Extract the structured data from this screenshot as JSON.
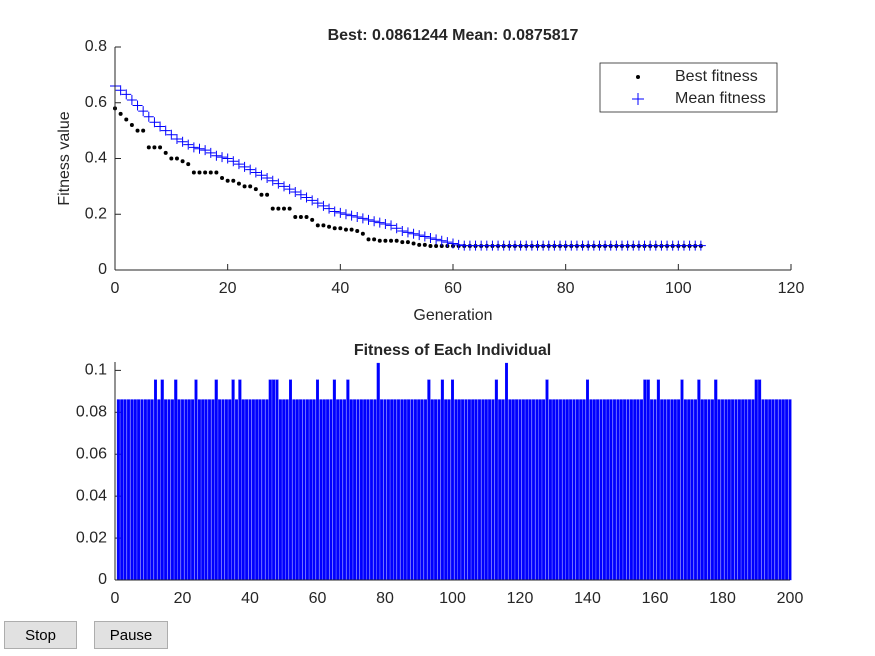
{
  "chart_data": [
    {
      "type": "scatter",
      "title": "Best: 0.0861244 Mean: 0.0875817",
      "xlabel": "Generation",
      "ylabel": "Fitness value",
      "x": [
        0,
        1,
        2,
        3,
        4,
        5,
        6,
        7,
        8,
        9,
        10,
        11,
        12,
        13,
        14,
        15,
        16,
        17,
        18,
        19,
        20,
        21,
        22,
        23,
        24,
        25,
        26,
        27,
        28,
        29,
        30,
        31,
        32,
        33,
        34,
        35,
        36,
        37,
        38,
        39,
        40,
        41,
        42,
        43,
        44,
        45,
        46,
        47,
        48,
        49,
        50,
        51,
        52,
        53,
        54,
        55,
        56,
        57,
        58,
        59,
        60,
        61,
        62,
        63,
        64,
        65,
        66,
        67,
        68,
        69,
        70,
        71,
        72,
        73,
        74,
        75,
        76,
        77,
        78,
        79,
        80,
        81,
        82,
        83,
        84,
        85,
        86,
        87,
        88,
        89,
        90,
        91,
        92,
        93,
        94,
        95,
        96,
        97,
        98,
        99,
        100,
        101,
        102,
        103,
        104
      ],
      "series": [
        {
          "name": "Best fitness",
          "color": "#000000",
          "marker": "dot",
          "values": [
            0.58,
            0.56,
            0.54,
            0.52,
            0.5,
            0.5,
            0.44,
            0.44,
            0.44,
            0.42,
            0.4,
            0.4,
            0.39,
            0.38,
            0.35,
            0.35,
            0.35,
            0.35,
            0.35,
            0.33,
            0.32,
            0.32,
            0.31,
            0.3,
            0.3,
            0.29,
            0.27,
            0.27,
            0.22,
            0.22,
            0.22,
            0.22,
            0.19,
            0.19,
            0.19,
            0.18,
            0.16,
            0.16,
            0.155,
            0.15,
            0.15,
            0.145,
            0.145,
            0.14,
            0.13,
            0.11,
            0.11,
            0.105,
            0.105,
            0.105,
            0.105,
            0.1,
            0.1,
            0.095,
            0.09,
            0.09,
            0.086,
            0.086,
            0.086,
            0.086,
            0.086,
            0.086,
            0.086,
            0.086,
            0.086,
            0.086,
            0.086,
            0.086,
            0.086,
            0.086,
            0.086,
            0.086,
            0.086,
            0.086,
            0.086,
            0.086,
            0.086,
            0.086,
            0.086,
            0.086,
            0.086,
            0.086,
            0.086,
            0.086,
            0.086,
            0.086,
            0.086,
            0.086,
            0.086,
            0.086,
            0.086,
            0.086,
            0.086,
            0.086,
            0.086,
            0.086,
            0.086,
            0.086,
            0.086,
            0.086,
            0.086,
            0.086,
            0.086,
            0.086,
            0.086
          ]
        },
        {
          "name": "Mean fitness",
          "color": "#0000ff",
          "marker": "plus",
          "values": [
            0.66,
            0.645,
            0.63,
            0.61,
            0.59,
            0.57,
            0.55,
            0.53,
            0.515,
            0.5,
            0.485,
            0.47,
            0.46,
            0.45,
            0.44,
            0.435,
            0.43,
            0.42,
            0.41,
            0.405,
            0.4,
            0.39,
            0.38,
            0.37,
            0.36,
            0.35,
            0.34,
            0.33,
            0.32,
            0.31,
            0.3,
            0.29,
            0.28,
            0.27,
            0.26,
            0.25,
            0.24,
            0.23,
            0.22,
            0.21,
            0.205,
            0.2,
            0.195,
            0.19,
            0.185,
            0.18,
            0.175,
            0.17,
            0.165,
            0.16,
            0.15,
            0.14,
            0.135,
            0.13,
            0.125,
            0.12,
            0.115,
            0.11,
            0.105,
            0.1,
            0.095,
            0.09,
            0.0876,
            0.0876,
            0.0876,
            0.0876,
            0.0876,
            0.0876,
            0.0876,
            0.0876,
            0.0876,
            0.0876,
            0.0876,
            0.0876,
            0.0876,
            0.0876,
            0.0876,
            0.0876,
            0.0876,
            0.0876,
            0.0876,
            0.0876,
            0.0876,
            0.0876,
            0.0876,
            0.0876,
            0.0876,
            0.0876,
            0.0876,
            0.0876,
            0.0876,
            0.0876,
            0.0876,
            0.0876,
            0.0876,
            0.0876,
            0.0876,
            0.0876,
            0.0876,
            0.0876,
            0.0876,
            0.0876,
            0.0876,
            0.0876,
            0.0876
          ]
        }
      ],
      "xlim": [
        0,
        120
      ],
      "xticks": [
        0,
        20,
        40,
        60,
        80,
        100,
        120
      ],
      "ylim": [
        0,
        0.8
      ],
      "yticks": [
        0,
        0.2,
        0.4,
        0.6,
        0.8
      ],
      "legend": "top-right"
    },
    {
      "type": "bar",
      "title": "Fitness of Each Individual",
      "color": "#0000ff",
      "x": [
        1,
        2,
        3,
        4,
        5,
        6,
        7,
        8,
        9,
        10,
        11,
        12,
        13,
        14,
        15,
        16,
        17,
        18,
        19,
        20,
        21,
        22,
        23,
        24,
        25,
        26,
        27,
        28,
        29,
        30,
        31,
        32,
        33,
        34,
        35,
        36,
        37,
        38,
        39,
        40,
        41,
        42,
        43,
        44,
        45,
        46,
        47,
        48,
        49,
        50,
        51,
        52,
        53,
        54,
        55,
        56,
        57,
        58,
        59,
        60,
        61,
        62,
        63,
        64,
        65,
        66,
        67,
        68,
        69,
        70,
        71,
        72,
        73,
        74,
        75,
        76,
        77,
        78,
        79,
        80,
        81,
        82,
        83,
        84,
        85,
        86,
        87,
        88,
        89,
        90,
        91,
        92,
        93,
        94,
        95,
        96,
        97,
        98,
        99,
        100,
        101,
        102,
        103,
        104,
        105,
        106,
        107,
        108,
        109,
        110,
        111,
        112,
        113,
        114,
        115,
        116,
        117,
        118,
        119,
        120,
        121,
        122,
        123,
        124,
        125,
        126,
        127,
        128,
        129,
        130,
        131,
        132,
        133,
        134,
        135,
        136,
        137,
        138,
        139,
        140,
        141,
        142,
        143,
        144,
        145,
        146,
        147,
        148,
        149,
        150,
        151,
        152,
        153,
        154,
        155,
        156,
        157,
        158,
        159,
        160,
        161,
        162,
        163,
        164,
        165,
        166,
        167,
        168,
        169,
        170,
        171,
        172,
        173,
        174,
        175,
        176,
        177,
        178,
        179,
        180,
        181,
        182,
        183,
        184,
        185,
        186,
        187,
        188,
        189,
        190,
        191,
        192,
        193,
        194,
        195,
        196,
        197,
        198,
        199,
        200
      ],
      "values": [
        0.0861,
        0.0861,
        0.0861,
        0.0861,
        0.0861,
        0.0861,
        0.0861,
        0.0861,
        0.0861,
        0.0861,
        0.0861,
        0.0955,
        0.0861,
        0.0955,
        0.0861,
        0.0861,
        0.0861,
        0.0955,
        0.0861,
        0.0861,
        0.0861,
        0.0861,
        0.0861,
        0.0955,
        0.0861,
        0.0861,
        0.0861,
        0.0861,
        0.0861,
        0.0955,
        0.0861,
        0.0861,
        0.0861,
        0.0861,
        0.0955,
        0.0861,
        0.0955,
        0.0861,
        0.0861,
        0.0861,
        0.0861,
        0.0861,
        0.0861,
        0.0861,
        0.0861,
        0.0955,
        0.0955,
        0.0955,
        0.0861,
        0.0861,
        0.0861,
        0.0955,
        0.0861,
        0.0861,
        0.0861,
        0.0861,
        0.0861,
        0.0861,
        0.0861,
        0.0955,
        0.0861,
        0.0861,
        0.0861,
        0.0861,
        0.0955,
        0.0861,
        0.0861,
        0.0861,
        0.0955,
        0.0861,
        0.0861,
        0.0861,
        0.0861,
        0.0861,
        0.0861,
        0.0861,
        0.0861,
        0.1035,
        0.0861,
        0.0861,
        0.0861,
        0.0861,
        0.0861,
        0.0861,
        0.0861,
        0.0861,
        0.0861,
        0.0861,
        0.0861,
        0.0861,
        0.0861,
        0.0861,
        0.0955,
        0.0861,
        0.0861,
        0.0861,
        0.0955,
        0.0861,
        0.0861,
        0.0955,
        0.0861,
        0.0861,
        0.0861,
        0.0861,
        0.0861,
        0.0861,
        0.0861,
        0.0861,
        0.0861,
        0.0861,
        0.0861,
        0.0861,
        0.0955,
        0.0861,
        0.0861,
        0.1035,
        0.0861,
        0.0861,
        0.0861,
        0.0861,
        0.0861,
        0.0861,
        0.0861,
        0.0861,
        0.0861,
        0.0861,
        0.0861,
        0.0955,
        0.0861,
        0.0861,
        0.0861,
        0.0861,
        0.0861,
        0.0861,
        0.0861,
        0.0861,
        0.0861,
        0.0861,
        0.0861,
        0.0955,
        0.0861,
        0.0861,
        0.0861,
        0.0861,
        0.0861,
        0.0861,
        0.0861,
        0.0861,
        0.0861,
        0.0861,
        0.0861,
        0.0861,
        0.0861,
        0.0861,
        0.0861,
        0.0861,
        0.0955,
        0.0955,
        0.0861,
        0.0861,
        0.0955,
        0.0861,
        0.0861,
        0.0861,
        0.0861,
        0.0861,
        0.0861,
        0.0955,
        0.0861,
        0.0861,
        0.0861,
        0.0861,
        0.0955,
        0.0861,
        0.0861,
        0.0861,
        0.0861,
        0.0955,
        0.0861,
        0.0861,
        0.0861,
        0.0861,
        0.0861,
        0.0861,
        0.0861,
        0.0861,
        0.0861,
        0.0861,
        0.0861,
        0.0955,
        0.0955,
        0.0861,
        0.0861,
        0.0861,
        0.0861,
        0.0861,
        0.0861,
        0.0861,
        0.0861,
        0.0861
      ],
      "xlim": [
        0,
        200
      ],
      "xticks": [
        0,
        20,
        40,
        60,
        80,
        100,
        120,
        140,
        160,
        180,
        200
      ],
      "ylim": [
        0,
        0.104
      ],
      "yticks": [
        0,
        0.02,
        0.04,
        0.06,
        0.08,
        0.1
      ]
    }
  ],
  "buttons": [
    "Stop",
    "Pause"
  ]
}
